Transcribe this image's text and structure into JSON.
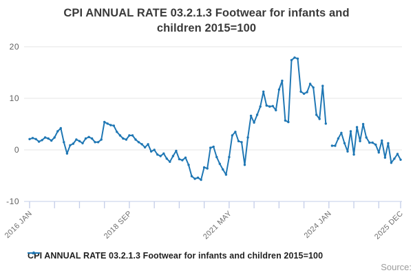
{
  "title": "CPI ANNUAL RATE 03.2.1.3 Footwear for infants and children 2015=100",
  "legend": {
    "label": "CPI ANNUAL RATE 03.2.1.3 Footwear for infants and children 2015=100"
  },
  "source_label": "Source:",
  "colors": {
    "series": "#1f77b4",
    "gridline": "#e4e4e4",
    "axis": "#c3cde8",
    "tick_label": "#6e6e6e",
    "y_label": "#5f5f5f"
  },
  "chart_data": {
    "type": "line",
    "title": "CPI ANNUAL RATE 03.2.1.3 Footwear for infants and children 2015=100",
    "xlabel": "",
    "ylabel": "",
    "ylim": [
      -10,
      20
    ],
    "y_ticks": [
      20,
      10,
      0,
      -10
    ],
    "grid": "horizontal",
    "legend_position": "bottom-left",
    "x_unit": "month",
    "x_start": "2016 JAN",
    "x_end": "2025 DEC",
    "x_tick_labels": [
      "2016 JAN",
      "2018 SEP",
      "2021 MAY",
      "2024 JAN",
      "2025 DEC"
    ],
    "x_tick_months": [
      0,
      32,
      64,
      96,
      119
    ],
    "minor_tick_every_months": 8,
    "series": [
      {
        "name": "CPI ANNUAL RATE 03.2.1.3 Footwear for infants and children 2015=100",
        "note": "values are monthly, Jan 2016 to Dec 2025; null = gap in published series (2024 JAN)",
        "values": [
          2.1,
          2.3,
          2.1,
          1.6,
          1.9,
          2.4,
          2.2,
          1.8,
          2.4,
          3.6,
          4.2,
          1.5,
          -0.7,
          0.9,
          1.2,
          2.0,
          1.7,
          1.3,
          2.2,
          2.5,
          2.2,
          1.5,
          1.5,
          2.0,
          5.4,
          5.1,
          4.8,
          4.7,
          3.5,
          2.8,
          2.2,
          2.0,
          2.8,
          2.8,
          2.0,
          1.5,
          1.1,
          0.5,
          1.1,
          -0.3,
          0.0,
          -0.9,
          -1.2,
          -0.7,
          -1.7,
          -2.3,
          -1.2,
          -0.2,
          -1.8,
          -2.0,
          -1.5,
          -2.9,
          -5.1,
          -5.6,
          -5.4,
          -5.8,
          -3.4,
          -3.6,
          0.4,
          0.6,
          -1.4,
          -2.7,
          -3.8,
          -4.8,
          -1.4,
          2.8,
          3.5,
          1.7,
          1.5,
          -2.9,
          2.4,
          6.6,
          5.3,
          6.8,
          8.4,
          11.3,
          8.6,
          8.4,
          8.5,
          7.7,
          11.7,
          13.4,
          5.7,
          5.4,
          17.4,
          17.9,
          17.7,
          11.3,
          10.9,
          11.2,
          12.8,
          12.1,
          6.8,
          6.0,
          12.4,
          5.1,
          null,
          0.8,
          0.8,
          2.2,
          3.3,
          1.3,
          -0.3,
          3.6,
          -0.9,
          4.4,
          1.7,
          5.0,
          2.4,
          1.4,
          1.4,
          1.0,
          -0.5,
          1.8,
          -1.5,
          1.3,
          -2.5,
          -1.7,
          -0.8,
          -1.9
        ]
      }
    ]
  }
}
